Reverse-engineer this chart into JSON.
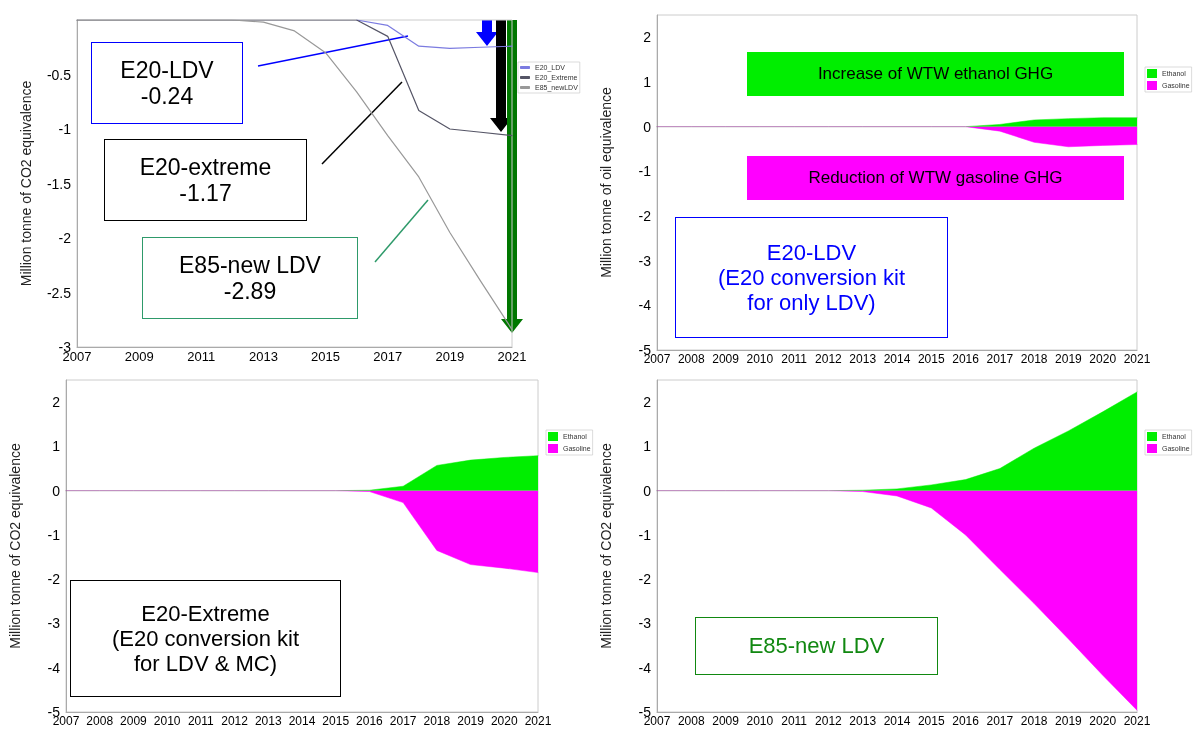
{
  "chart_data": [
    {
      "type": "line",
      "ylabel": "Million tonne of CO2 equivalence",
      "x": [
        2007,
        2008,
        2009,
        2010,
        2011,
        2012,
        2013,
        2014,
        2015,
        2016,
        2017,
        2018,
        2019,
        2020,
        2021
      ],
      "xlim": [
        2007,
        2021
      ],
      "xticks": [
        2007,
        2009,
        2011,
        2013,
        2015,
        2017,
        2019,
        2021
      ],
      "ylim": [
        -3,
        0
      ],
      "yticks": [
        -3,
        -2.5,
        -2,
        -1.5,
        -1,
        -0.5
      ],
      "legend": "top right",
      "marker": "none",
      "line_style": "solid",
      "grid": false,
      "series": [
        {
          "name": "E20_LDV",
          "color": "#7b7be0",
          "values": [
            null,
            null,
            null,
            null,
            null,
            null,
            null,
            null,
            null,
            0,
            -0.05,
            -0.24,
            -0.26,
            -0.25,
            -0.24
          ]
        },
        {
          "name": "E20_Extreme",
          "color": "#555566",
          "values": [
            0,
            0,
            0,
            0,
            0,
            0,
            0,
            0,
            0,
            0,
            -0.15,
            -0.83,
            -1.0,
            -1.03,
            -1.06
          ]
        },
        {
          "name": "E85_newLDV",
          "color": "#999999",
          "values": [
            0,
            0,
            0,
            0,
            0,
            0,
            -0.02,
            -0.1,
            -0.3,
            -0.66,
            -1.06,
            -1.44,
            -1.95,
            -2.4,
            -2.84
          ]
        }
      ],
      "annotations": [
        "E20-LDV\n-0.24",
        "E20-extreme\n-1.17",
        "E85-new LDV\n-2.89"
      ]
    },
    {
      "type": "area",
      "ylabel": "Million tonne of oil equivalence",
      "x": [
        2007,
        2008,
        2009,
        2010,
        2011,
        2012,
        2013,
        2014,
        2015,
        2016,
        2017,
        2018,
        2019,
        2020,
        2021
      ],
      "xlim": [
        2007,
        2021
      ],
      "xticks": [
        2007,
        2008,
        2009,
        2010,
        2011,
        2012,
        2013,
        2014,
        2015,
        2016,
        2017,
        2018,
        2019,
        2020,
        2021
      ],
      "ylim": [
        -5,
        2.5
      ],
      "yticks": [
        -5,
        -4,
        -3,
        -2,
        -1,
        0,
        1,
        2
      ],
      "legend": "top right",
      "grid": false,
      "series": [
        {
          "name": "Ethanol",
          "color": "#00ee00",
          "values": [
            0,
            0,
            0,
            0,
            0,
            0,
            0,
            0,
            0,
            0,
            0.05,
            0.15,
            0.18,
            0.2,
            0.2
          ]
        },
        {
          "name": "Gasoline",
          "color": "#ff00ff",
          "values": [
            0,
            0,
            0,
            0,
            0,
            0,
            0,
            0,
            0,
            0,
            -0.1,
            -0.35,
            -0.45,
            -0.42,
            -0.4
          ]
        }
      ],
      "annotations": [
        "Increase of WTW ethanol GHG",
        "Reduction of WTW gasoline GHG",
        "E20-LDV\n(E20 conversion kit\nfor only LDV)"
      ]
    },
    {
      "type": "area",
      "ylabel": "Million tonne of CO2 equivalence",
      "x": [
        2007,
        2008,
        2009,
        2010,
        2011,
        2012,
        2013,
        2014,
        2015,
        2016,
        2017,
        2018,
        2019,
        2020,
        2021
      ],
      "xlim": [
        2007,
        2021
      ],
      "xticks": [
        2007,
        2008,
        2009,
        2010,
        2011,
        2012,
        2013,
        2014,
        2015,
        2016,
        2017,
        2018,
        2019,
        2020,
        2021
      ],
      "ylim": [
        -5,
        2.5
      ],
      "yticks": [
        -5,
        -4,
        -3,
        -2,
        -1,
        0,
        1,
        2
      ],
      "legend": "top right",
      "grid": false,
      "series": [
        {
          "name": "Ethanol",
          "color": "#00ee00",
          "values": [
            0,
            0,
            0,
            0,
            0,
            0,
            0,
            0,
            0,
            0.01,
            0.1,
            0.57,
            0.69,
            0.75,
            0.79
          ]
        },
        {
          "name": "Gasoline",
          "color": "#ff00ff",
          "values": [
            0,
            0,
            0,
            0,
            0,
            0,
            0,
            0,
            0,
            -0.02,
            -0.27,
            -1.35,
            -1.67,
            -1.75,
            -1.85
          ]
        }
      ],
      "annotations": [
        "E20-Extreme\n(E20 conversion kit\nfor LDV & MC)"
      ]
    },
    {
      "type": "area",
      "ylabel": "Million tonne of CO2 equivalence",
      "x": [
        2007,
        2008,
        2009,
        2010,
        2011,
        2012,
        2013,
        2014,
        2015,
        2016,
        2017,
        2018,
        2019,
        2020,
        2021
      ],
      "xlim": [
        2007,
        2021
      ],
      "xticks": [
        2007,
        2008,
        2009,
        2010,
        2011,
        2012,
        2013,
        2014,
        2015,
        2016,
        2017,
        2018,
        2019,
        2020,
        2021
      ],
      "ylim": [
        -5,
        2.5
      ],
      "yticks": [
        -5,
        -4,
        -3,
        -2,
        -1,
        0,
        1,
        2
      ],
      "legend": "top right",
      "grid": false,
      "series": [
        {
          "name": "Ethanol",
          "color": "#00ee00",
          "values": [
            0,
            0,
            0,
            0,
            0,
            0,
            0.01,
            0.04,
            0.13,
            0.25,
            0.5,
            0.96,
            1.35,
            1.78,
            2.23
          ]
        },
        {
          "name": "Gasoline",
          "color": "#ff00ff",
          "values": [
            0,
            0,
            0,
            0,
            0,
            0,
            -0.02,
            -0.12,
            -0.39,
            -1.0,
            -1.78,
            -2.55,
            -3.35,
            -4.17,
            -4.96
          ]
        }
      ],
      "annotations": [
        "E85-new LDV"
      ]
    }
  ]
}
